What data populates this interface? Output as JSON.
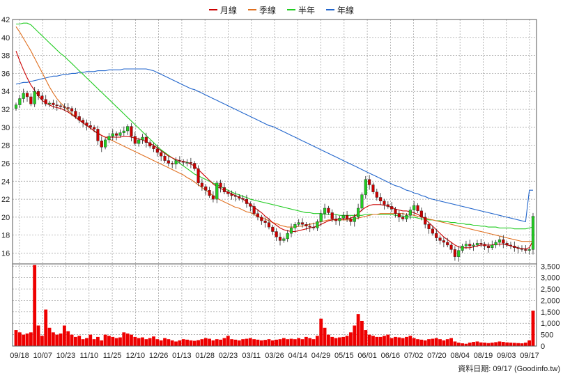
{
  "legend": [
    {
      "label": "月線",
      "color": "#cc0000"
    },
    {
      "label": "季線",
      "color": "#e07020"
    },
    {
      "label": "半年",
      "color": "#22cc22"
    },
    {
      "label": "年線",
      "color": "#2266cc"
    }
  ],
  "footer": {
    "label": "資料日期: 09/17",
    "source": "(Goodinfo.tw)"
  },
  "chart_data": {
    "type": "line",
    "price_axis": {
      "ylim": [
        14.8,
        42
      ],
      "ticks": [
        16,
        18,
        20,
        22,
        24,
        26,
        28,
        30,
        32,
        34,
        36,
        38,
        40,
        42
      ]
    },
    "volume_axis": {
      "ylim": [
        0,
        3600
      ],
      "ticks": [
        0,
        500,
        1000,
        1500,
        2000,
        2500,
        3000,
        3500
      ],
      "tick_labels": [
        "0",
        "500",
        "1,000",
        "1,500",
        "2,000",
        "2,500",
        "3,000",
        "3,500"
      ]
    },
    "x_ticks": [
      "09/18",
      "10/07",
      "10/23",
      "11/10",
      "11/25",
      "12/10",
      "12/26",
      "01/13",
      "01/28",
      "02/23",
      "03/11",
      "03/26",
      "04/14",
      "04/29",
      "05/15",
      "06/01",
      "06/16",
      "07/02",
      "07/20",
      "08/04",
      "08/19",
      "09/03",
      "09/17"
    ],
    "grid": true,
    "candle_colors": {
      "up": "#22cc22",
      "down": "#cc0000"
    },
    "volume_color": "#ee0000",
    "close": [
      32.5,
      33.2,
      33.8,
      33.4,
      32.6,
      34.0,
      33.5,
      33.1,
      32.6,
      32.7,
      32.5,
      32.4,
      32.3,
      32.2,
      32.1,
      31.8,
      31.2,
      30.8,
      30.5,
      30.2,
      30.0,
      29.8,
      28.5,
      27.8,
      28.6,
      29.0,
      29.3,
      29.1,
      29.4,
      29.6,
      30.1,
      29.0,
      28.2,
      28.6,
      28.9,
      28.3,
      27.9,
      27.6,
      27.2,
      26.8,
      26.3,
      26.0,
      25.9,
      26.3,
      26.2,
      26.1,
      26.1,
      26.0,
      25.4,
      23.8,
      23.4,
      23.0,
      22.4,
      22.0,
      23.8,
      23.3,
      22.8,
      22.6,
      22.4,
      22.3,
      22.1,
      22.0,
      21.5,
      21.2,
      20.4,
      20.0,
      19.6,
      19.4,
      18.9,
      18.4,
      17.8,
      17.4,
      17.6,
      18.2,
      18.8,
      19.2,
      19.4,
      19.2,
      19.0,
      18.9,
      18.8,
      19.5,
      20.4,
      21.0,
      20.5,
      19.8,
      19.6,
      19.9,
      20.2,
      19.8,
      19.5,
      20.0,
      21.0,
      22.5,
      24.2,
      23.6,
      22.8,
      22.2,
      21.8,
      21.4,
      21.2,
      20.9,
      20.4,
      20.0,
      19.8,
      20.2,
      20.8,
      21.3,
      20.7,
      20.0,
      19.2,
      18.7,
      18.2,
      17.7,
      17.4,
      17.2,
      16.9,
      16.4,
      15.6,
      16.3,
      16.8,
      17.0,
      16.8,
      16.9,
      17.1,
      17.0,
      16.8,
      16.6,
      16.9,
      17.2,
      17.5,
      17.1,
      16.9,
      16.8,
      16.6,
      16.5,
      16.4,
      16.3,
      16.4,
      20.1
    ],
    "ma_month": [
      38.5,
      37.4,
      36.4,
      35.5,
      34.7,
      34.1,
      33.5,
      33.0,
      32.7,
      32.5,
      32.3,
      32.2,
      32.1,
      31.9,
      31.7,
      31.4,
      31.1,
      30.8,
      30.5,
      30.2,
      29.9,
      29.6,
      29.3,
      29.1,
      28.9,
      28.9,
      28.9,
      28.9,
      28.9,
      29.0,
      29.0,
      28.9,
      28.8,
      28.7,
      28.6,
      28.4,
      28.2,
      28.0,
      27.7,
      27.4,
      27.1,
      26.8,
      26.6,
      26.4,
      26.3,
      26.2,
      26.1,
      25.9,
      25.7,
      25.3,
      24.9,
      24.5,
      24.1,
      23.7,
      23.4,
      23.2,
      23.0,
      22.8,
      22.6,
      22.4,
      22.2,
      22.0,
      21.7,
      21.4,
      21.1,
      20.8,
      20.5,
      20.1,
      19.8,
      19.4,
      19.1,
      18.8,
      18.6,
      18.5,
      18.4,
      18.4,
      18.5,
      18.6,
      18.7,
      18.8,
      18.9,
      19.0,
      19.2,
      19.4,
      19.6,
      19.7,
      19.8,
      19.8,
      19.8,
      19.8,
      19.9,
      20.1,
      20.4,
      20.8,
      21.1,
      21.3,
      21.4,
      21.4,
      21.4,
      21.3,
      21.2,
      21.1,
      20.9,
      20.8,
      20.7,
      20.7,
      20.6,
      20.5,
      20.3,
      20.1,
      19.8,
      19.4,
      19.0,
      18.6,
      18.2,
      17.8,
      17.5,
      17.2,
      16.9,
      16.7,
      16.6,
      16.6,
      16.6,
      16.7,
      16.8,
      16.9,
      16.9,
      16.9,
      16.9,
      17.0,
      17.0,
      17.0,
      16.9,
      16.8,
      16.7,
      16.6,
      16.5,
      16.5,
      16.6,
      17.4
    ],
    "ma_quarter": [
      41.2,
      40.6,
      39.9,
      39.2,
      38.5,
      37.7,
      36.9,
      36.1,
      35.3,
      34.5,
      33.8,
      33.2,
      32.7,
      32.3,
      31.9,
      31.5,
      31.2,
      30.8,
      30.5,
      30.2,
      29.9,
      29.6,
      29.4,
      29.1,
      28.9,
      28.7,
      28.5,
      28.3,
      28.1,
      27.9,
      27.7,
      27.5,
      27.3,
      27.1,
      26.9,
      26.7,
      26.5,
      26.3,
      26.1,
      25.9,
      25.7,
      25.5,
      25.3,
      25.1,
      24.9,
      24.7,
      24.4,
      24.2,
      23.9,
      23.6,
      23.3,
      23.0,
      22.7,
      22.4,
      22.1,
      21.9,
      21.7,
      21.5,
      21.3,
      21.1,
      21.0,
      20.8,
      20.6,
      20.5,
      20.3,
      20.1,
      19.9,
      19.8,
      19.6,
      19.4,
      19.3,
      19.1,
      19.0,
      18.9,
      18.9,
      18.9,
      19.0,
      19.0,
      19.1,
      19.2,
      19.3,
      19.4,
      19.5,
      19.6,
      19.7,
      19.7,
      19.7,
      19.7,
      19.7,
      19.7,
      19.7,
      19.8,
      19.9,
      20.0,
      20.1,
      20.2,
      20.3,
      20.3,
      20.4,
      20.4,
      20.4,
      20.4,
      20.4,
      20.4,
      20.4,
      20.3,
      20.3,
      20.2,
      20.1,
      20.0,
      19.9,
      19.8,
      19.7,
      19.6,
      19.5,
      19.4,
      19.3,
      19.2,
      19.1,
      19.0,
      18.9,
      18.8,
      18.7,
      18.6,
      18.5,
      18.4,
      18.3,
      18.2,
      18.1,
      18.0,
      17.9,
      17.8,
      17.7,
      17.6,
      17.5,
      17.4,
      17.3,
      17.3,
      17.3,
      17.3
    ],
    "ma_half": [
      41.5,
      41.5,
      41.6,
      41.6,
      41.4,
      41.0,
      40.6,
      40.2,
      39.8,
      39.4,
      39.0,
      38.6,
      38.2,
      37.9,
      37.5,
      37.1,
      36.7,
      36.3,
      35.9,
      35.5,
      35.1,
      34.7,
      34.3,
      33.9,
      33.5,
      33.1,
      32.7,
      32.3,
      31.9,
      31.5,
      31.1,
      30.7,
      30.3,
      29.9,
      29.5,
      29.1,
      28.7,
      28.3,
      27.9,
      27.5,
      27.2,
      26.9,
      26.6,
      26.3,
      26.0,
      25.7,
      25.4,
      25.1,
      24.8,
      24.6,
      24.4,
      24.2,
      24.0,
      23.8,
      23.6,
      23.4,
      23.2,
      23.0,
      22.8,
      22.6,
      22.5,
      22.3,
      22.2,
      22.0,
      21.9,
      21.8,
      21.7,
      21.6,
      21.5,
      21.4,
      21.3,
      21.2,
      21.1,
      21.0,
      20.9,
      20.8,
      20.7,
      20.6,
      20.5,
      20.5,
      20.4,
      20.4,
      20.4,
      20.3,
      20.3,
      20.3,
      20.3,
      20.2,
      20.2,
      20.2,
      20.2,
      20.2,
      20.2,
      20.2,
      20.3,
      20.3,
      20.3,
      20.3,
      20.3,
      20.3,
      20.3,
      20.3,
      20.2,
      20.2,
      20.1,
      20.1,
      20.0,
      20.0,
      19.9,
      19.8,
      19.8,
      19.7,
      19.7,
      19.6,
      19.6,
      19.5,
      19.5,
      19.4,
      19.4,
      19.3,
      19.3,
      19.2,
      19.2,
      19.1,
      19.1,
      19.0,
      19.0,
      18.9,
      18.9,
      18.9,
      18.8,
      18.8,
      18.8,
      18.8,
      18.7,
      18.7,
      18.7,
      18.7,
      18.8,
      18.9
    ],
    "ma_year": [
      34.8,
      34.9,
      35.0,
      35.0,
      35.1,
      35.2,
      35.3,
      35.4,
      35.5,
      35.6,
      35.7,
      35.7,
      35.8,
      35.9,
      35.9,
      36.0,
      36.0,
      36.1,
      36.1,
      36.2,
      36.2,
      36.2,
      36.3,
      36.3,
      36.3,
      36.4,
      36.4,
      36.4,
      36.4,
      36.5,
      36.5,
      36.5,
      36.5,
      36.5,
      36.5,
      36.5,
      36.4,
      36.3,
      36.1,
      35.9,
      35.7,
      35.5,
      35.3,
      35.1,
      34.9,
      34.7,
      34.5,
      34.3,
      34.2,
      34.0,
      33.8,
      33.6,
      33.4,
      33.2,
      33.0,
      32.8,
      32.6,
      32.4,
      32.2,
      32.0,
      31.8,
      31.6,
      31.4,
      31.2,
      31.0,
      30.8,
      30.6,
      30.4,
      30.2,
      30.1,
      29.9,
      29.7,
      29.5,
      29.3,
      29.1,
      28.9,
      28.7,
      28.5,
      28.3,
      28.1,
      27.9,
      27.7,
      27.5,
      27.3,
      27.1,
      26.9,
      26.7,
      26.5,
      26.3,
      26.1,
      25.9,
      25.7,
      25.5,
      25.3,
      25.1,
      24.9,
      24.7,
      24.5,
      24.3,
      24.1,
      23.9,
      23.7,
      23.5,
      23.4,
      23.2,
      23.0,
      22.9,
      22.7,
      22.6,
      22.4,
      22.3,
      22.1,
      22.0,
      21.9,
      21.8,
      21.7,
      21.6,
      21.5,
      21.4,
      21.3,
      21.2,
      21.1,
      21.0,
      20.9,
      20.8,
      20.7,
      20.6,
      20.5,
      20.4,
      20.3,
      20.2,
      20.1,
      20.0,
      19.9,
      19.8,
      19.7,
      19.6,
      19.5,
      23.0,
      23.0
    ],
    "volume": [
      700,
      600,
      500,
      550,
      600,
      3550,
      900,
      450,
      1600,
      800,
      600,
      500,
      550,
      900,
      650,
      500,
      400,
      450,
      300,
      350,
      500,
      300,
      400,
      250,
      500,
      450,
      400,
      350,
      380,
      600,
      550,
      500,
      400,
      350,
      380,
      300,
      350,
      420,
      300,
      250,
      350,
      300,
      250,
      200,
      250,
      300,
      280,
      250,
      230,
      260,
      300,
      350,
      320,
      250,
      300,
      280,
      350,
      450,
      300,
      280,
      250,
      300,
      320,
      350,
      300,
      280,
      250,
      270,
      300,
      250,
      280,
      300,
      350,
      300,
      320,
      300,
      350,
      300,
      400,
      350,
      300,
      450,
      1200,
      800,
      500,
      400,
      350,
      380,
      400,
      450,
      600,
      900,
      1400,
      1100,
      700,
      500,
      450,
      400,
      400,
      450,
      500,
      350,
      400,
      380,
      350,
      400,
      450,
      350,
      300,
      280,
      250,
      300,
      320,
      350,
      300,
      250,
      300,
      350,
      200,
      150,
      120,
      100,
      150,
      180,
      200,
      160,
      150,
      130,
      150,
      170,
      200,
      180,
      160,
      150,
      140,
      130,
      120,
      150,
      250,
      1550
    ]
  }
}
